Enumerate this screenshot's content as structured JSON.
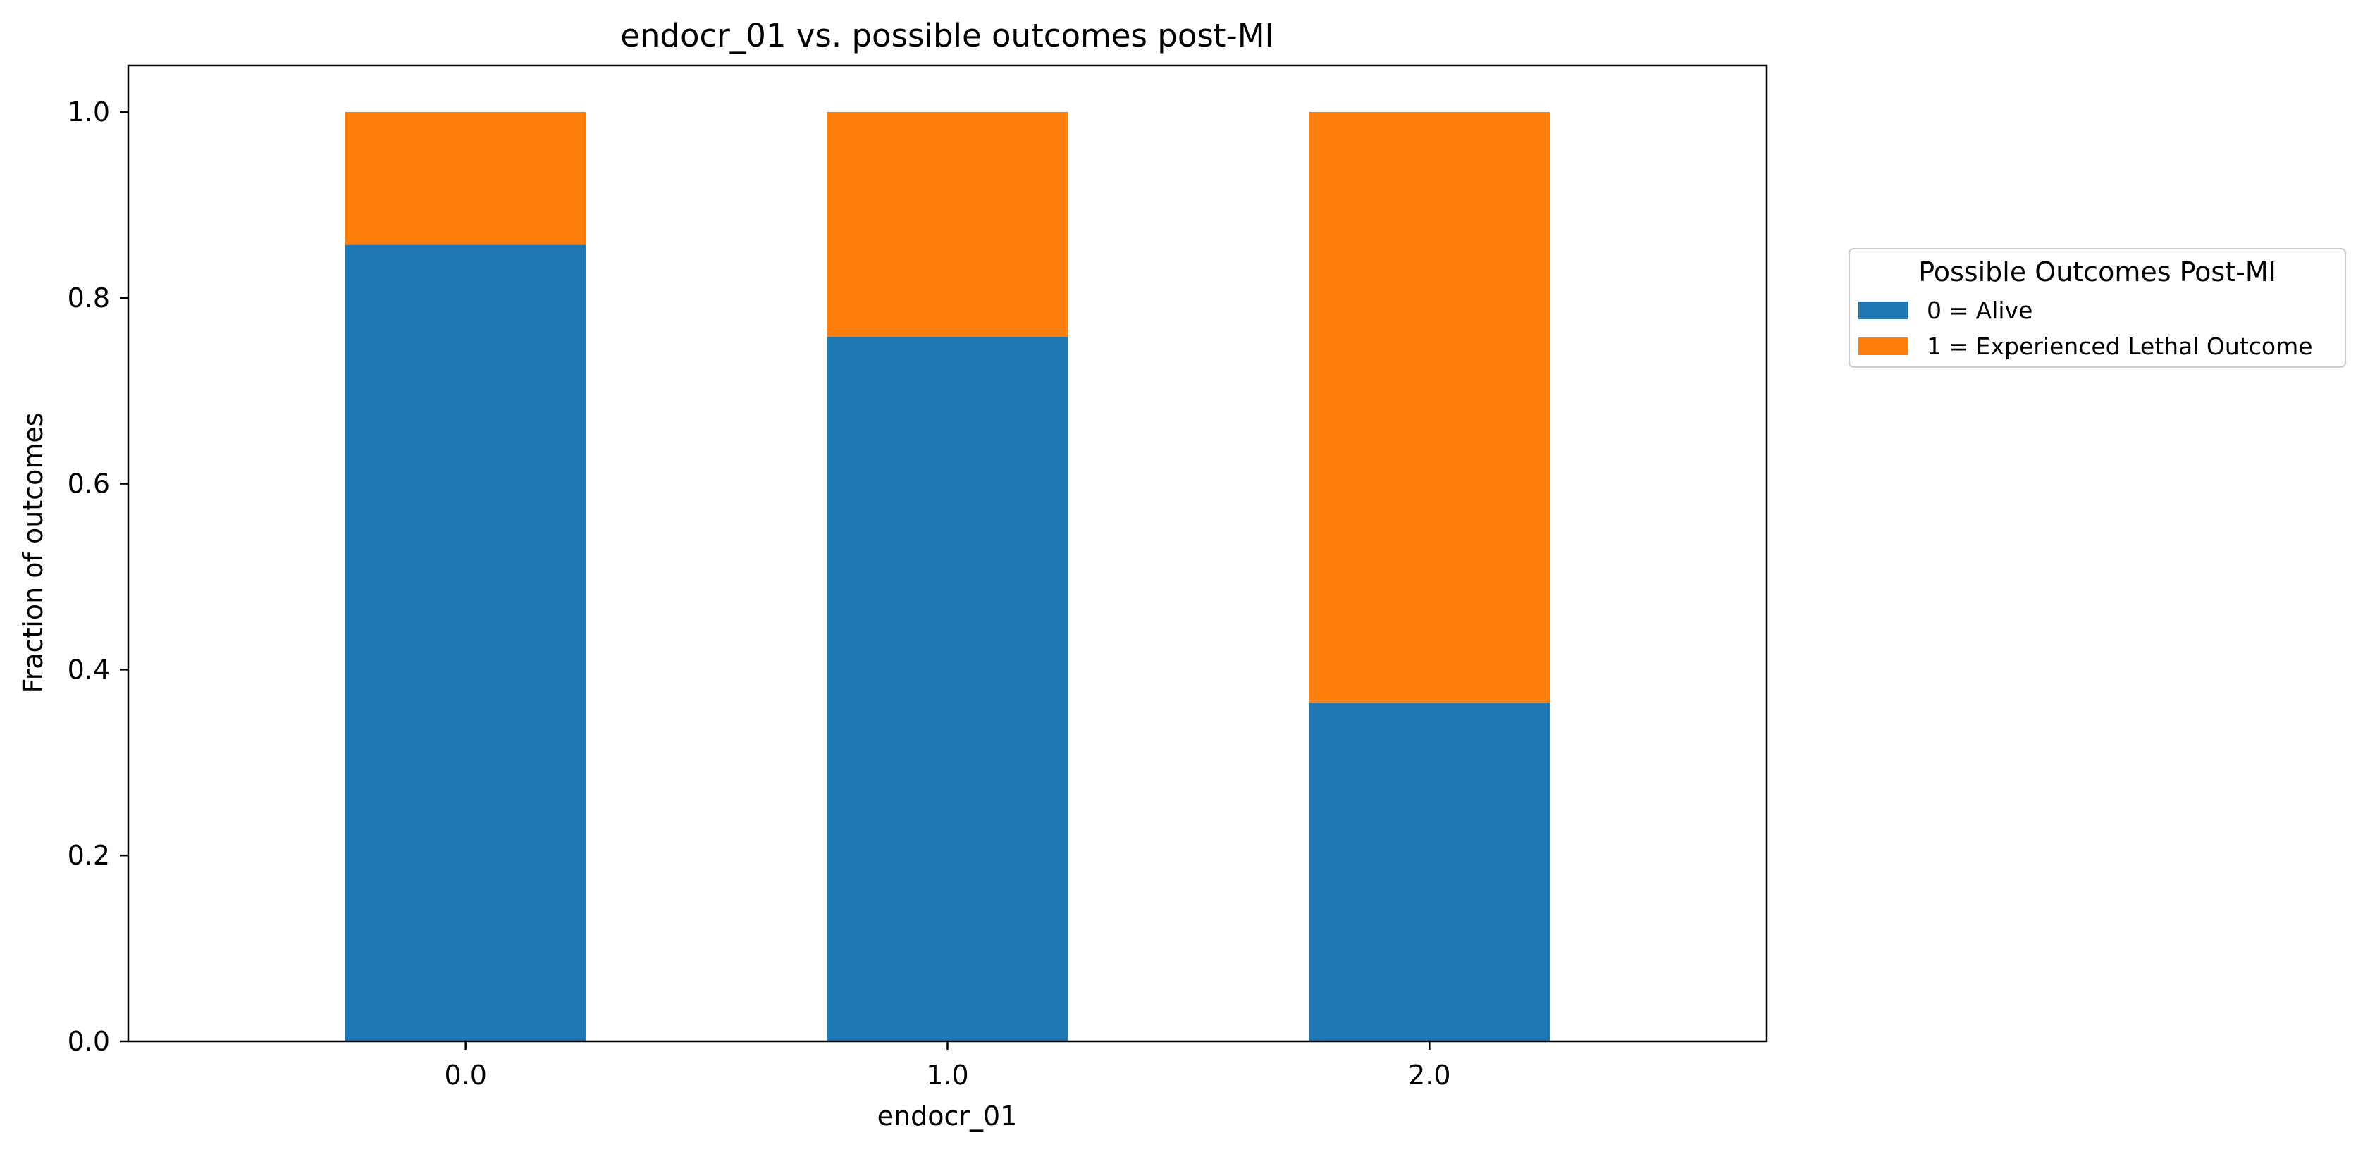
{
  "chart_data": {
    "type": "bar",
    "stacked": true,
    "title": "endocr_01 vs. possible outcomes post-MI",
    "xlabel": "endocr_01",
    "ylabel": "Fraction of outcomes",
    "ylim": [
      0,
      1.05
    ],
    "y_ticks": [
      "0.0",
      "0.2",
      "0.4",
      "0.6",
      "0.8",
      "1.0"
    ],
    "categories": [
      "0.0",
      "1.0",
      "2.0"
    ],
    "series": [
      {
        "name": "0 = Alive",
        "color": "#1f77b4",
        "values": [
          0.857,
          0.758,
          0.364
        ]
      },
      {
        "name": "1 = Experienced Lethal Outcome",
        "color": "#ff7f0e",
        "values": [
          0.143,
          0.242,
          0.636
        ]
      }
    ],
    "legend": {
      "title": "Possible Outcomes Post-MI",
      "placement": "outside-right"
    },
    "grid": false
  }
}
